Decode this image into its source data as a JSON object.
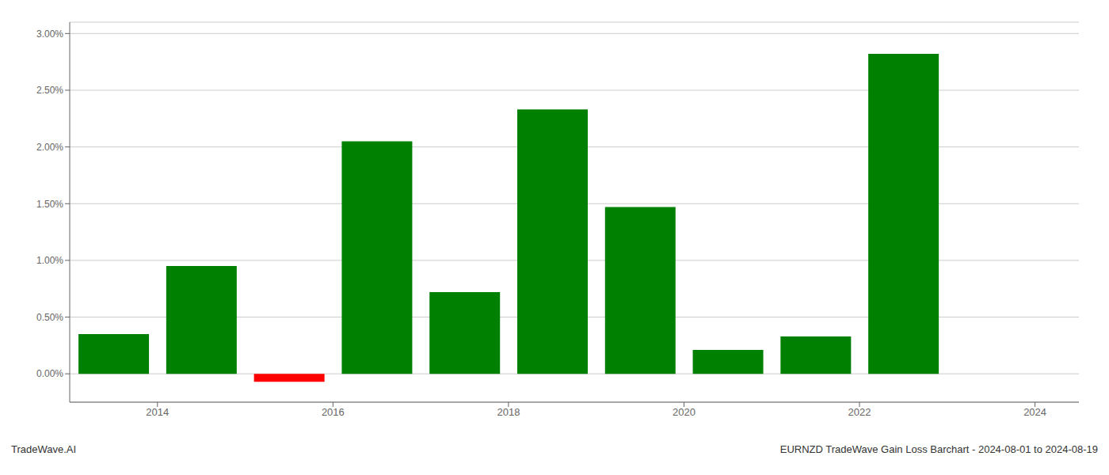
{
  "chart_data": {
    "type": "bar",
    "x": [
      2013.5,
      2014.5,
      2015.5,
      2016.5,
      2017.5,
      2018.5,
      2019.5,
      2020.5,
      2021.5,
      2022.5
    ],
    "values": [
      0.0035,
      0.0095,
      -0.0007,
      0.0205,
      0.0072,
      0.0233,
      0.0147,
      0.0021,
      0.0033,
      0.0282
    ],
    "colors": [
      "#008000",
      "#008000",
      "#ff0000",
      "#008000",
      "#008000",
      "#008000",
      "#008000",
      "#008000",
      "#008000",
      "#008000"
    ],
    "xlim": [
      2013.0,
      2024.5
    ],
    "ylim": [
      -0.0025,
      0.031
    ],
    "xticks": [
      2014,
      2016,
      2018,
      2020,
      2022,
      2024
    ],
    "yticks": [
      {
        "value": 0.0,
        "label": "0.00%"
      },
      {
        "value": 0.005,
        "label": "0.50%"
      },
      {
        "value": 0.01,
        "label": "1.00%"
      },
      {
        "value": 0.015,
        "label": "1.50%"
      },
      {
        "value": 0.02,
        "label": "2.00%"
      },
      {
        "value": 0.025,
        "label": "2.50%"
      },
      {
        "value": 0.03,
        "label": "3.00%"
      }
    ],
    "grid": true,
    "annotations": [
      "TradeWave.AI",
      "EURNZD TradeWave Gain Loss Barchart - 2024-08-01 to 2024-08-19"
    ]
  }
}
